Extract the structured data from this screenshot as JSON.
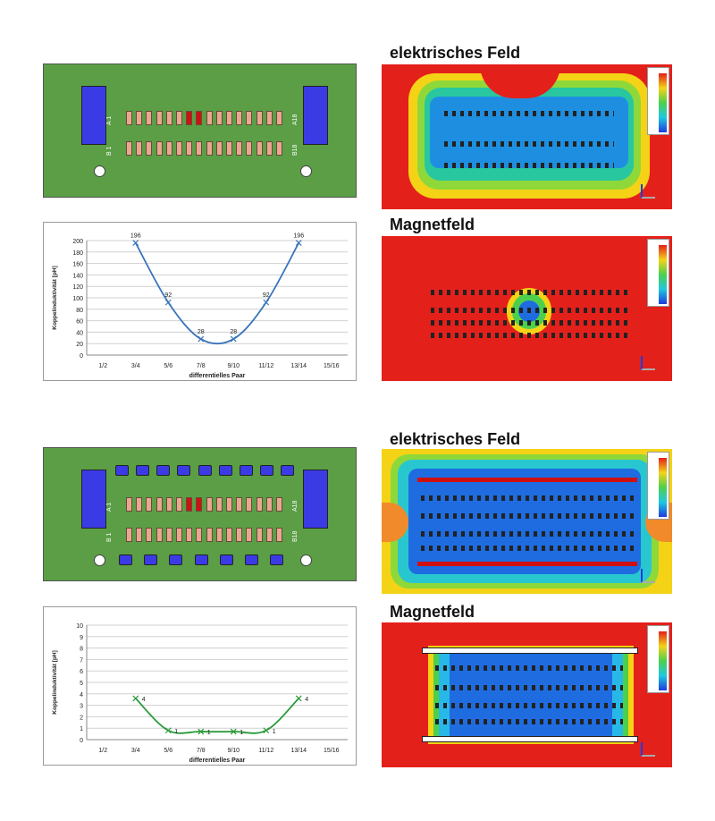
{
  "colors": {
    "board_green": "#5b9e46",
    "pad_blue": "#3b3be6",
    "pad_salmon": "#e8a890",
    "pad_red": "#d01010",
    "field_red": "#e4201b",
    "line_blue": "#3a74bb",
    "line_green": "#2a9a3a"
  },
  "top": {
    "connector": {
      "row_a_left": "A 1",
      "row_a_right": "A18",
      "row_b_left": "B 1",
      "row_b_right": "B18"
    },
    "efield_title": "elektrisches Feld",
    "mfield_title": "Magnetfeld"
  },
  "bottom": {
    "connector": {
      "row_a_left": "A 1",
      "row_a_right": "A18",
      "row_b_left": "B 1",
      "row_b_right": "B18"
    },
    "efield_title": "elektrisches Feld",
    "mfield_title": "Magnetfeld"
  },
  "chart_data": [
    {
      "type": "line",
      "ylabel": "Koppelinduktivität [pH]",
      "xlabel": "differentielles Paar",
      "categories": [
        "1/2",
        "3/4",
        "5/6",
        "7/8",
        "9/10",
        "11/12",
        "13/14",
        "15/16"
      ],
      "ylim": [
        0,
        200
      ],
      "yticks": [
        "0",
        "20",
        "40",
        "60",
        "80",
        "100",
        "120",
        "140",
        "160",
        "180",
        "200"
      ],
      "grid": true,
      "points": [
        {
          "cat": "3/4",
          "value": 196,
          "label": "196"
        },
        {
          "cat": "5/6",
          "value": 92,
          "label": "92"
        },
        {
          "cat": "7/8",
          "value": 28,
          "label": "28"
        },
        {
          "cat": "9/10",
          "value": 28,
          "label": "28"
        },
        {
          "cat": "11/12",
          "value": 92,
          "label": "92"
        },
        {
          "cat": "13/14",
          "value": 196,
          "label": "196"
        }
      ]
    },
    {
      "type": "line",
      "ylabel": "Koppelinduktivität [pH]",
      "xlabel": "differentielles Paar",
      "categories": [
        "1/2",
        "3/4",
        "5/6",
        "7/8",
        "9/10",
        "11/12",
        "13/14",
        "15/16"
      ],
      "ylim": [
        0,
        10
      ],
      "yticks": [
        "0",
        "1",
        "2",
        "3",
        "4",
        "5",
        "6",
        "7",
        "8",
        "9",
        "10"
      ],
      "grid": true,
      "points": [
        {
          "cat": "3/4",
          "value": 3.6,
          "label": "4"
        },
        {
          "cat": "5/6",
          "value": 0.8,
          "label": "1"
        },
        {
          "cat": "7/8",
          "value": 0.7,
          "label": "1"
        },
        {
          "cat": "9/10",
          "value": 0.7,
          "label": "1"
        },
        {
          "cat": "11/12",
          "value": 0.8,
          "label": "1"
        },
        {
          "cat": "13/14",
          "value": 3.6,
          "label": "4"
        }
      ]
    }
  ]
}
